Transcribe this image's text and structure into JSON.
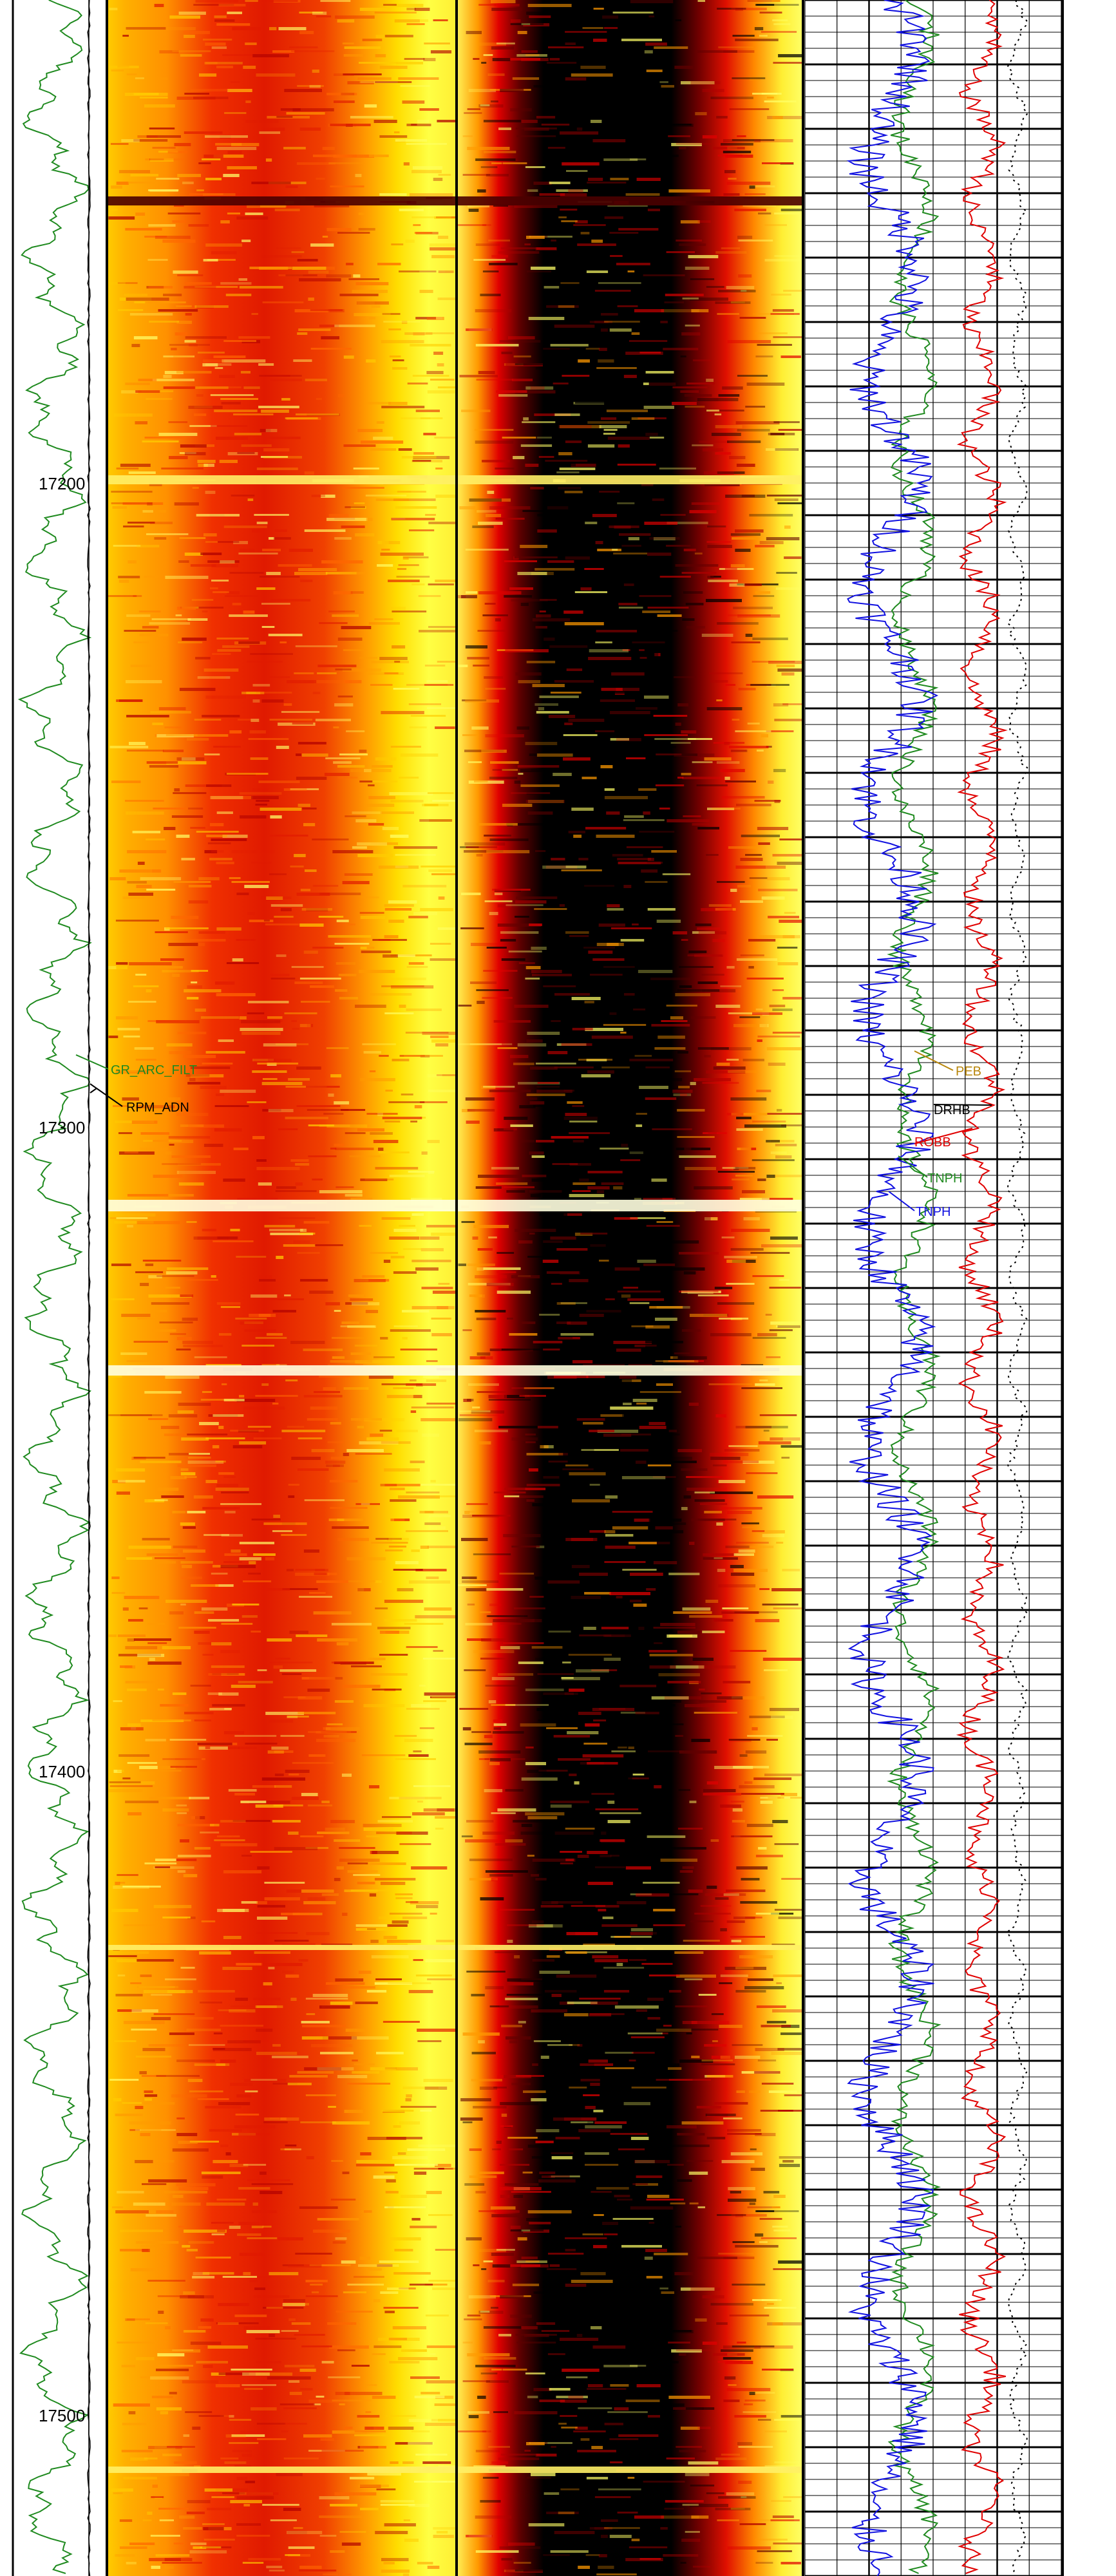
{
  "chart_data": [
    {
      "type": "line",
      "track": "depth-and-gamma-track",
      "depth_axis": {
        "ylim": [
          17125,
          17525
        ],
        "direction": "down",
        "ticks": [
          17200,
          17300,
          17400,
          17500
        ]
      },
      "tick_labels": [
        "17200",
        "17300",
        "17400",
        "17500"
      ],
      "series": [
        {
          "name": "GR_ARC_FILT",
          "color": "#1f8a1f"
        },
        {
          "name": "RPM_ADN",
          "color": "#000000"
        }
      ]
    },
    {
      "type": "heatmap",
      "track": "image-track-1",
      "palette": [
        "#000000",
        "#8b0000",
        "#e00000",
        "#ff4500",
        "#ff9900",
        "#ffcc00",
        "#ffff33",
        "#ffffcc"
      ],
      "description_level": "wide red/orange band with yellow edges; bright streaks at about 17321 and 17347"
    },
    {
      "type": "heatmap",
      "track": "image-track-2",
      "palette": [
        "#000000",
        "#8b0000",
        "#e00000",
        "#ff4500",
        "#ff9900",
        "#ffcc00",
        "#ffff33",
        "#ffffcc"
      ],
      "description_level": "black central band flanked by red, orange and yellow; bright streaks at about 17321 and 17347"
    },
    {
      "type": "line",
      "track": "curve-track",
      "series": [
        {
          "name": "PEB",
          "color": "#b8860b"
        },
        {
          "name": "DRHB",
          "color": "#000000"
        },
        {
          "name": "ROBB",
          "color": "#e00000"
        },
        {
          "name": "TNPH",
          "color": "#1f8a1f"
        },
        {
          "name": "TNPH",
          "color": "#1010e0"
        }
      ],
      "grid": true
    }
  ],
  "labels": {
    "gr": "GR_ARC_FILT",
    "rpm": "RPM_ADN",
    "peb": "PEB",
    "drhb": "DRHB",
    "robb": "ROBB",
    "tnph_green": "TNPH",
    "tnph_blue": "TNPH"
  },
  "depth_labels": [
    "17200",
    "17300",
    "17400",
    "17500"
  ],
  "colors": {
    "gr_curve": "#1f8a1f",
    "rpm_curve": "#000000",
    "red_curve": "#e00000",
    "blue_curve": "#1010e0",
    "green_curve": "#1f8a1f",
    "black_dotted_curve": "#000000",
    "grid": "#000000"
  }
}
